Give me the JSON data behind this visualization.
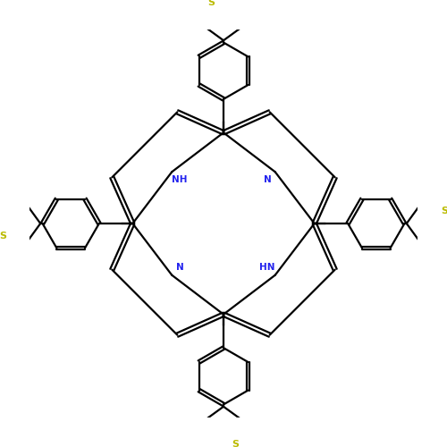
{
  "background_color": "#ffffff",
  "bond_color": "#000000",
  "N_color": "#2222ee",
  "S_color": "#bbbb00",
  "lw": 1.6,
  "figsize": [
    5.0,
    5.0
  ],
  "dpi": 100,
  "xlim": [
    -2.6,
    2.6
  ],
  "ylim": [
    -2.6,
    2.6
  ]
}
